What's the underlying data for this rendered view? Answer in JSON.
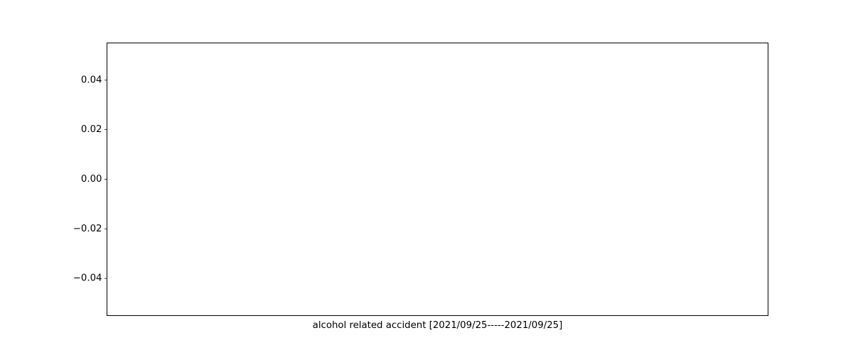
{
  "chart_data": {
    "type": "line",
    "xlabel": "alcohol related accident [2021/09/25-----2021/09/25]",
    "ylabel": "",
    "title": "",
    "ylim": [
      -0.055,
      0.055
    ],
    "yticks": [
      0.04,
      0.02,
      0.0,
      -0.02,
      -0.04
    ],
    "ytick_labels": [
      "0.04",
      "0.02",
      "0.00",
      "−0.02",
      "−0.04"
    ],
    "xticks": [],
    "series": [],
    "grid": false,
    "legend": "none",
    "colors": {
      "axes": "#000000",
      "background": "#ffffff"
    }
  }
}
